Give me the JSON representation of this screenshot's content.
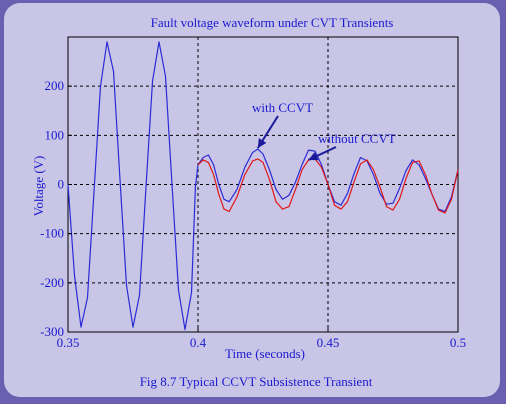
{
  "chart_data": {
    "type": "line",
    "title": "Fault voltage waveform under CVT Transients",
    "caption": "Fig 8.7 Typical CCVT Subsistence Transient",
    "xlabel": "Time (seconds)",
    "ylabel": "Voltage (V)",
    "xlim": [
      0.35,
      0.5
    ],
    "ylim": [
      -300,
      300
    ],
    "xticks": [
      0.35,
      0.4,
      0.45,
      0.5
    ],
    "xtick_labels": [
      "0.35",
      "0.4",
      "0.45",
      "0.5"
    ],
    "yticks": [
      200,
      100,
      0,
      -100,
      -200,
      -300
    ],
    "ytick_labels": [
      "200",
      "100",
      "0",
      "-100",
      "-200",
      "-300"
    ],
    "grid": true,
    "series": [
      {
        "color": "#2b2bd6",
        "x": [
          0.35,
          0.3525,
          0.355,
          0.3575,
          0.36,
          0.3625,
          0.365,
          0.3675,
          0.37,
          0.3725,
          0.375,
          0.3775,
          0.38,
          0.3825,
          0.385,
          0.3875,
          0.39,
          0.3925,
          0.395,
          0.3975,
          0.399,
          0.4,
          0.402,
          0.404,
          0.406,
          0.408,
          0.41,
          0.412,
          0.415,
          0.418,
          0.421,
          0.423,
          0.425,
          0.4275,
          0.43,
          0.4325,
          0.435,
          0.4375,
          0.44,
          0.4425,
          0.445,
          0.4475,
          0.45,
          0.4525,
          0.455,
          0.4575,
          0.46,
          0.4625,
          0.465,
          0.4675,
          0.47,
          0.4725,
          0.475,
          0.4775,
          0.48,
          0.4825,
          0.485,
          0.4875,
          0.49,
          0.4925,
          0.495,
          0.4975,
          0.5
        ],
        "y": [
          0,
          -185,
          -290,
          -230,
          -15,
          200,
          290,
          230,
          10,
          -205,
          -290,
          -225,
          -5,
          210,
          290,
          220,
          0,
          -215,
          -295,
          -220,
          -5,
          40,
          55,
          60,
          40,
          0,
          -30,
          -35,
          -10,
          35,
          65,
          72,
          62,
          30,
          -10,
          -30,
          -22,
          5,
          40,
          70,
          68,
          40,
          0,
          -35,
          -42,
          -18,
          22,
          55,
          48,
          20,
          -18,
          -40,
          -38,
          -8,
          28,
          50,
          40,
          12,
          -20,
          -50,
          -55,
          -25,
          30
        ]
      },
      {
        "color": "#e01818",
        "x": [
          0.4,
          0.402,
          0.404,
          0.406,
          0.408,
          0.41,
          0.412,
          0.415,
          0.418,
          0.421,
          0.423,
          0.425,
          0.4275,
          0.43,
          0.4325,
          0.435,
          0.4375,
          0.44,
          0.4425,
          0.445,
          0.4475,
          0.45,
          0.4525,
          0.455,
          0.4575,
          0.46,
          0.4625,
          0.465,
          0.4675,
          0.47,
          0.4725,
          0.475,
          0.4775,
          0.48,
          0.4825,
          0.485,
          0.4875,
          0.49,
          0.4925,
          0.495,
          0.4975,
          0.5
        ],
        "y": [
          40,
          50,
          45,
          20,
          -20,
          -50,
          -55,
          -25,
          20,
          48,
          52,
          45,
          10,
          -35,
          -50,
          -45,
          -10,
          30,
          50,
          52,
          35,
          0,
          -42,
          -50,
          -35,
          5,
          42,
          50,
          30,
          -5,
          -45,
          -52,
          -30,
          12,
          45,
          48,
          20,
          -20,
          -52,
          -58,
          -30,
          30
        ]
      }
    ],
    "annotations": [
      {
        "text": "with CCVT",
        "x": 0.423,
        "y": 74
      },
      {
        "text": "without CCVT",
        "x": 0.4425,
        "y": 50
      }
    ]
  }
}
